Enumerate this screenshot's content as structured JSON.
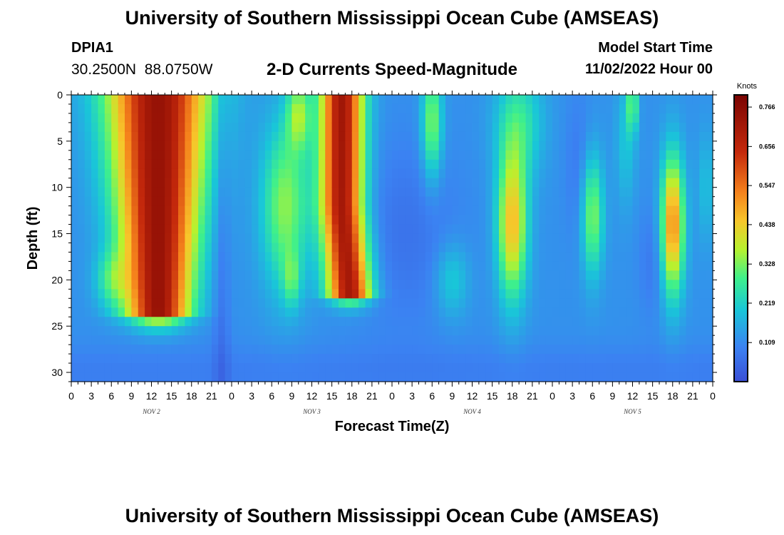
{
  "header": {
    "title": "University of Southern Mississippi Ocean Cube (AMSEAS)",
    "station_id": "DPIA1",
    "coordinates": "30.2500N  88.0750W",
    "chart_title": "2-D Currents Speed-Magnitude",
    "model_start_label": "Model Start Time",
    "model_start_value": "11/02/2022 Hour 00"
  },
  "footer": {
    "title": "University of Southern Mississippi Ocean Cube (AMSEAS)"
  },
  "chart_data": {
    "type": "heatmap",
    "title": "2-D Currents Speed-Magnitude",
    "xlabel": "Forecast Time(Z)",
    "ylabel": "Depth (ft)",
    "x_range_hours": [
      0,
      96
    ],
    "y_range_ft": [
      0,
      31
    ],
    "y_inverted": true,
    "x_ticks": [
      "0",
      "3",
      "6",
      "9",
      "12",
      "15",
      "18",
      "21",
      "0",
      "3",
      "6",
      "9",
      "12",
      "15",
      "18",
      "21",
      "0",
      "3",
      "6",
      "9",
      "12",
      "15",
      "18",
      "21",
      "0",
      "3",
      "6",
      "9",
      "12",
      "15",
      "18",
      "21",
      "0"
    ],
    "y_ticks": [
      "0",
      "5",
      "10",
      "15",
      "20",
      "25",
      "30"
    ],
    "day_labels": [
      "NOV 2",
      "NOV 3",
      "NOV 4",
      "NOV 5"
    ],
    "colorbar": {
      "unit": "Knots",
      "ticks": [
        "0.109",
        "0.219",
        "0.328",
        "0.438",
        "0.547",
        "0.656",
        "0.766"
      ],
      "min": 0,
      "max": 0.8
    },
    "features": [
      {
        "t": 13,
        "d_top": 0,
        "d_bot": 24,
        "speed": 0.78,
        "note": "strong surface-to-mid current"
      },
      {
        "t": 40,
        "d_top": 0,
        "d_bot": 22,
        "speed": 0.72,
        "note": "strong current"
      },
      {
        "t": 54,
        "d_top": 2,
        "d_bot": 8,
        "speed": 0.36,
        "note": "surface maximum"
      },
      {
        "t": 66,
        "d_top": 8,
        "d_bot": 22,
        "speed": 0.45,
        "note": "mid-depth maximum"
      },
      {
        "t": 78,
        "d_top": 9,
        "d_bot": 19,
        "speed": 0.33,
        "note": "mid-depth maximum"
      },
      {
        "t": 90,
        "d_top": 8,
        "d_bot": 22,
        "speed": 0.5,
        "note": "mid-depth maximum"
      }
    ]
  }
}
